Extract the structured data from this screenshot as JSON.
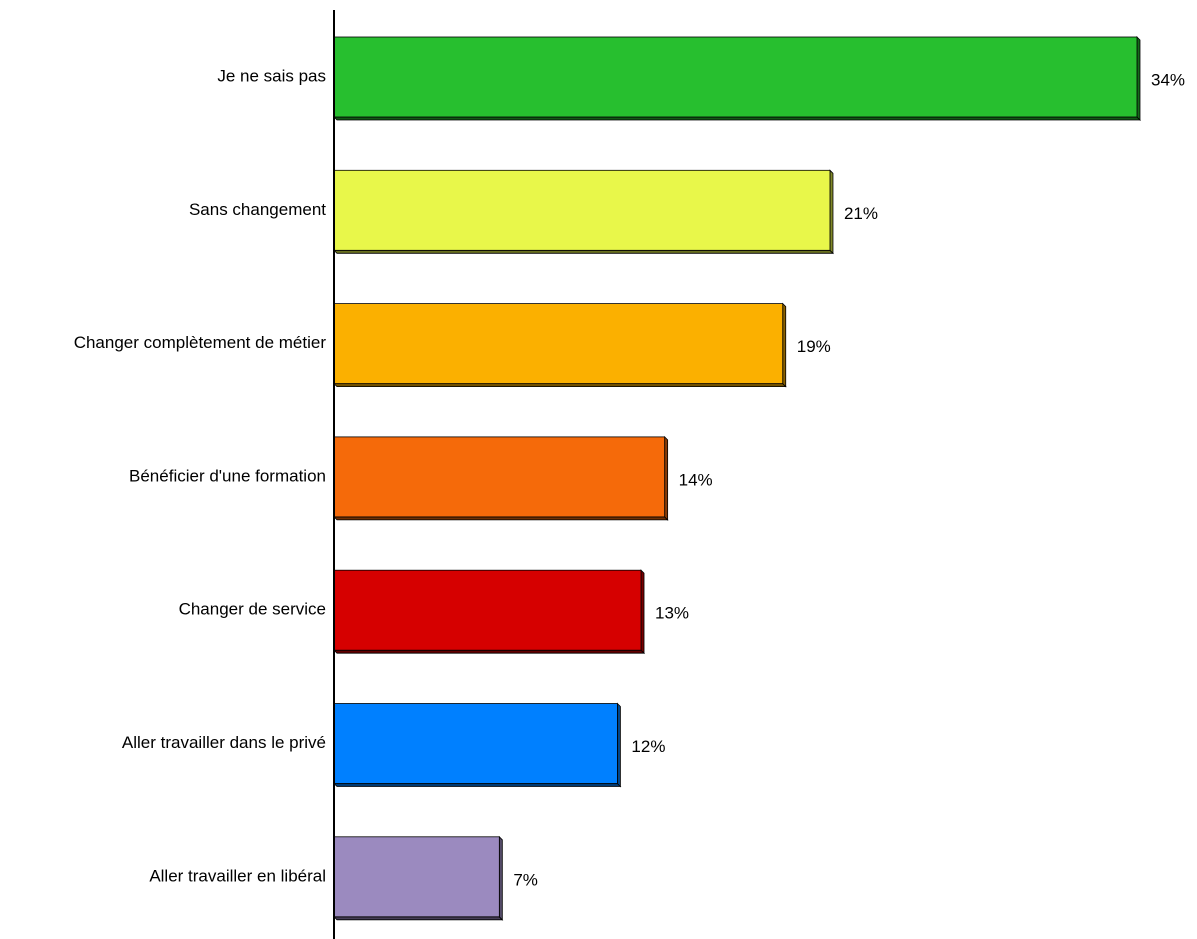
{
  "chart_data": {
    "type": "bar",
    "orientation": "horizontal",
    "categories": [
      "Je ne sais pas",
      "Sans changement",
      "Changer complètement de métier",
      "Bénéficier d'une formation",
      "Changer de service",
      "Aller travailler dans le privé",
      "Aller travailler en libéral"
    ],
    "values": [
      34,
      21,
      19,
      14,
      13,
      12,
      7
    ],
    "value_labels": [
      "34%",
      "21%",
      "19%",
      "14%",
      "13%",
      "12%",
      "7%"
    ],
    "unit": "%",
    "colors": [
      "#27bf2f",
      "#e8f74a",
      "#fbb000",
      "#f56a0a",
      "#d60000",
      "#0080ff",
      "#9b8abf"
    ],
    "xlim": [
      0,
      34
    ],
    "grid": false,
    "legend": "none",
    "bar_style": "3d"
  }
}
